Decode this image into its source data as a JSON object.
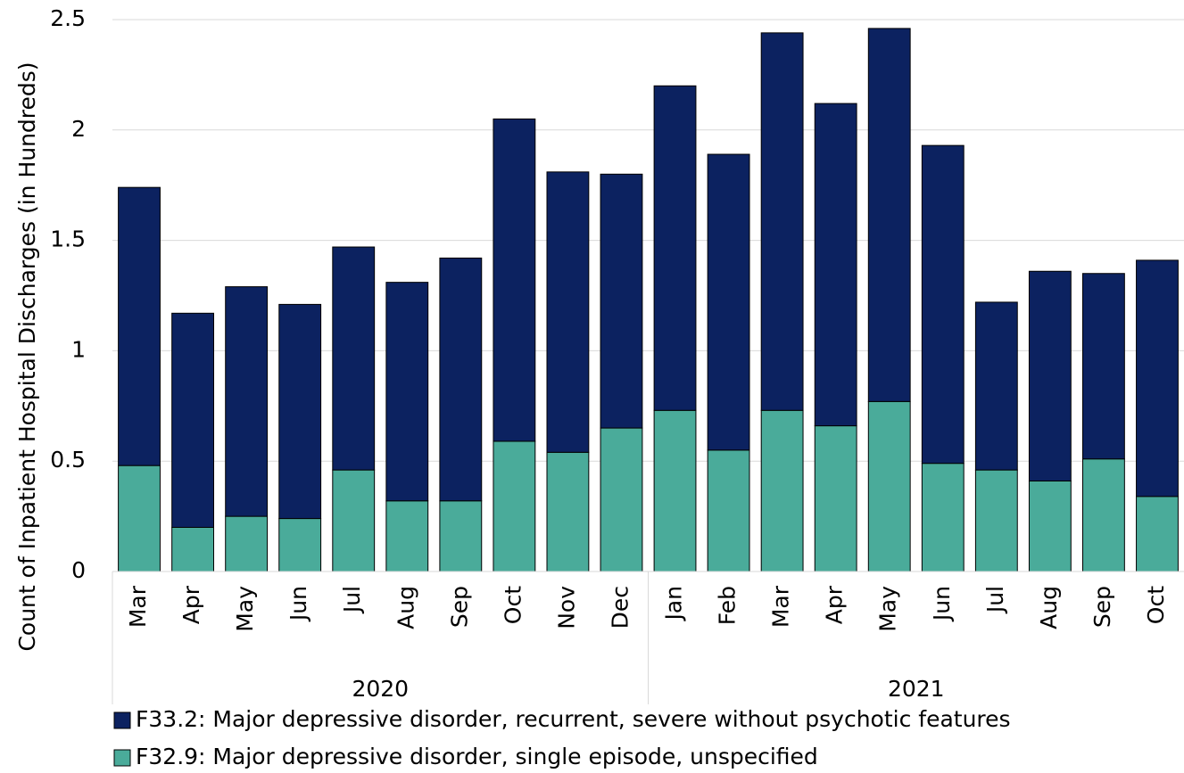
{
  "chart_data": {
    "type": "stacked-bar",
    "y_label": "Count of Inpatient Hospital Discharges (in Hundreds)",
    "groups": [
      {
        "label": "2020",
        "categories": [
          "Mar",
          "Apr",
          "May",
          "Jun",
          "Jul",
          "Aug",
          "Sep",
          "Oct",
          "Nov",
          "Dec"
        ]
      },
      {
        "label": "2021",
        "categories": [
          "Jan",
          "Feb",
          "Mar",
          "Apr",
          "May",
          "Jun",
          "Jul",
          "Aug",
          "Sep",
          "Oct"
        ]
      }
    ],
    "series": [
      {
        "name": "F32.9: Major depressive disorder, single episode, unspecified",
        "color": "#4aab9a",
        "values": [
          0.48,
          0.2,
          0.25,
          0.24,
          0.46,
          0.32,
          0.32,
          0.59,
          0.54,
          0.65,
          0.73,
          0.55,
          0.73,
          0.66,
          0.77,
          0.49,
          0.46,
          0.41,
          0.51,
          0.34
        ]
      },
      {
        "name": "F33.2: Major depressive disorder, recurrent, severe without psychotic features",
        "color": "#0c2260",
        "values": [
          1.26,
          0.97,
          1.04,
          0.97,
          1.01,
          0.99,
          1.1,
          1.46,
          1.27,
          1.15,
          1.47,
          1.34,
          1.71,
          1.46,
          1.69,
          1.44,
          0.76,
          0.95,
          0.84,
          1.07
        ]
      }
    ],
    "ylim": [
      0,
      2.5
    ],
    "yticks": [
      0,
      0.5,
      1,
      1.5,
      2,
      2.5
    ],
    "grid": true
  }
}
